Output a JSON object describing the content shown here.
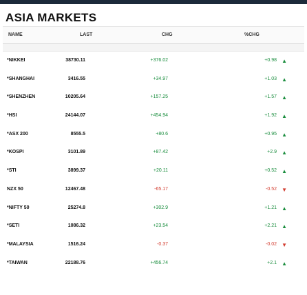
{
  "title": "ASIA MARKETS",
  "columns": {
    "name": "NAME",
    "last": "LAST",
    "chg": "CHG",
    "pct": "%CHG"
  },
  "rows": [
    {
      "name": "*NIKKEI",
      "last": "38730.11",
      "chg": "+376.02",
      "pct": "+0.98",
      "dir": "up"
    },
    {
      "name": "*SHANGHAI",
      "last": "3416.55",
      "chg": "+34.97",
      "pct": "+1.03",
      "dir": "up"
    },
    {
      "name": "*SHENZHEN",
      "last": "10205.64",
      "chg": "+157.25",
      "pct": "+1.57",
      "dir": "up"
    },
    {
      "name": "*HSI",
      "last": "24144.07",
      "chg": "+454.94",
      "pct": "+1.92",
      "dir": "up"
    },
    {
      "name": "*ASX 200",
      "last": "8555.5",
      "chg": "+80.6",
      "pct": "+0.95",
      "dir": "up"
    },
    {
      "name": "*KOSPI",
      "last": "3101.89",
      "chg": "+87.42",
      "pct": "+2.9",
      "dir": "up"
    },
    {
      "name": "*STI",
      "last": "3899.37",
      "chg": "+20.11",
      "pct": "+0.52",
      "dir": "up"
    },
    {
      "name": "NZX 50",
      "last": "12467.48",
      "chg": "-65.17",
      "pct": "-0.52",
      "dir": "down"
    },
    {
      "name": "*NIFTY 50",
      "last": "25274.8",
      "chg": "+302.9",
      "pct": "+1.21",
      "dir": "up"
    },
    {
      "name": "*SETI",
      "last": "1086.32",
      "chg": "+23.54",
      "pct": "+2.21",
      "dir": "up"
    },
    {
      "name": "*MALAYSIA",
      "last": "1516.24",
      "chg": "-0.37",
      "pct": "-0.02",
      "dir": "down"
    },
    {
      "name": "*TAIWAN",
      "last": "22188.76",
      "chg": "+456.74",
      "pct": "+2.1",
      "dir": "up"
    }
  ],
  "icons": {
    "up": "triangle-up-icon",
    "down": "triangle-down-icon"
  },
  "colors": {
    "positive": "#1a8d3e",
    "negative": "#d23b2e",
    "topbar": "#1c2a3a"
  }
}
